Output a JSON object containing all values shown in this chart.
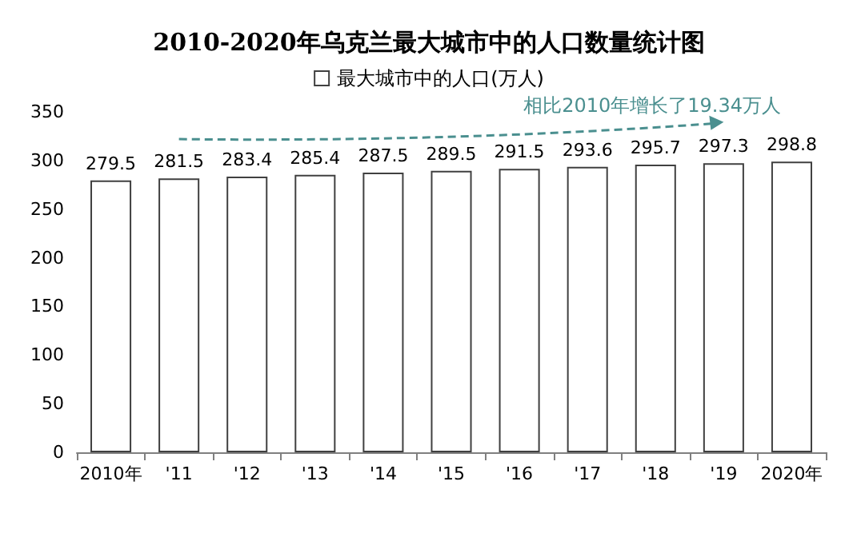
{
  "chart_data": {
    "type": "bar",
    "title": "2010-2020年乌克兰最大城市中的人口数量统计图",
    "categories": [
      "2010年",
      "'11",
      "'12",
      "'13",
      "'14",
      "'15",
      "'16",
      "'17",
      "'18",
      "'19",
      "2020年"
    ],
    "series": [
      {
        "name": "最大城市中的人口(万人)",
        "color": "#ffffff",
        "values": [
          279.5,
          281.5,
          283.4,
          285.4,
          287.5,
          289.5,
          291.5,
          293.6,
          295.7,
          297.3,
          298.8
        ]
      }
    ],
    "ylim": [
      0,
      350
    ],
    "yticks": [
      0,
      50,
      100,
      150,
      200,
      250,
      300,
      350
    ],
    "grid": false,
    "legend": "top",
    "data_labels": true,
    "annotations": [
      "相比2010年增长了19.34万人"
    ]
  }
}
